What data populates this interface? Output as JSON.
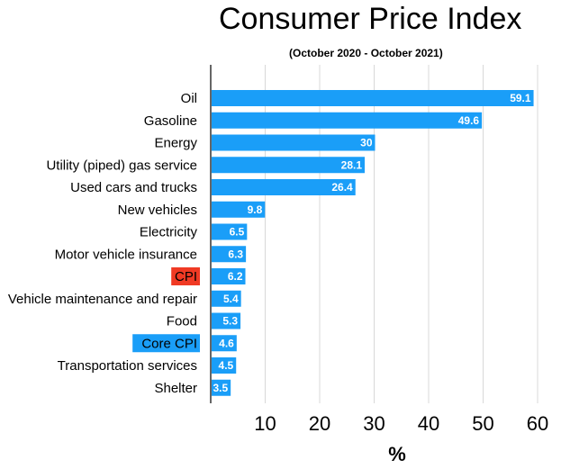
{
  "chart_data": {
    "type": "bar",
    "orientation": "horizontal",
    "title": "Consumer Price Index",
    "subtitle": "(October 2020 - October 2021)",
    "xlabel": "%",
    "ylabel": "",
    "xlim": [
      0,
      60
    ],
    "xticks": [
      10,
      20,
      30,
      40,
      50,
      60
    ],
    "grid": true,
    "categories": [
      "Oil",
      "Gasoline",
      "Energy",
      "Utility (piped) gas service",
      "Used cars and trucks",
      "New vehicles",
      "Electricity",
      "Motor vehicle insurance",
      "CPI",
      "Vehicle maintenance and repair",
      "Food",
      "Core CPI",
      "Transportation services",
      "Shelter"
    ],
    "values": [
      59.1,
      49.6,
      30,
      28.1,
      26.4,
      9.8,
      6.5,
      6.3,
      6.2,
      5.4,
      5.3,
      4.6,
      4.5,
      3.5
    ],
    "value_labels": [
      "59.1",
      "49.6",
      "30",
      "28.1",
      "26.4",
      "9.8",
      "6.5",
      "6.3",
      "6.2",
      "5.4",
      "5.3",
      "4.6",
      "4.5",
      "3.5"
    ],
    "highlighted_labels": {
      "CPI": "#f03a24",
      "Core CPI": "#1a9ef8"
    }
  },
  "colors": {
    "bar": "#1a9ef8",
    "grid": "#d8d8d8",
    "axis": "#000000"
  }
}
